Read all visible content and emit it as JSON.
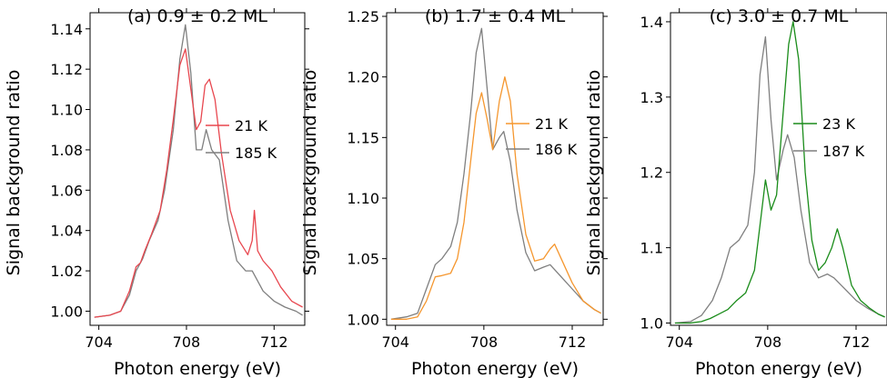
{
  "chart_data": [
    {
      "type": "line",
      "title": "(a) 0.9 ± 0.2 ML",
      "xlabel": "Photon energy (eV)",
      "ylabel": "Signal background ratio",
      "xlim": [
        703.6,
        713.4
      ],
      "ylim": [
        0.993,
        1.148
      ],
      "xticks": [
        704,
        708,
        712
      ],
      "yticks": [
        1.0,
        1.02,
        1.04,
        1.06,
        1.08,
        1.1,
        1.12,
        1.14
      ],
      "ytick_labels": [
        "1.00",
        "1.02",
        "1.04",
        "1.06",
        "1.08",
        "1.10",
        "1.12",
        "1.14"
      ],
      "legend_position": "center-right",
      "series": [
        {
          "name": "21 K",
          "color": "#e8474f",
          "x": [
            703.8,
            704.5,
            705.0,
            705.4,
            705.7,
            705.9,
            706.1,
            706.4,
            706.8,
            707.1,
            707.4,
            707.7,
            707.95,
            708.2,
            708.45,
            708.65,
            708.85,
            709.05,
            709.3,
            709.6,
            710.0,
            710.4,
            710.8,
            711.0,
            711.1,
            711.25,
            711.5,
            711.9,
            712.3,
            712.8,
            713.3
          ],
          "y": [
            0.997,
            0.998,
            1.0,
            1.01,
            1.022,
            1.024,
            1.03,
            1.038,
            1.05,
            1.07,
            1.095,
            1.122,
            1.13,
            1.11,
            1.09,
            1.094,
            1.112,
            1.115,
            1.105,
            1.078,
            1.05,
            1.035,
            1.028,
            1.035,
            1.05,
            1.03,
            1.025,
            1.02,
            1.012,
            1.005,
            1.002
          ]
        },
        {
          "name": "185 K",
          "color": "#7f7f7f",
          "x": [
            703.8,
            704.5,
            705.0,
            705.4,
            705.7,
            706.0,
            706.3,
            706.7,
            707.0,
            707.4,
            707.7,
            707.95,
            708.2,
            708.45,
            708.7,
            708.9,
            709.15,
            709.5,
            709.9,
            710.3,
            710.7,
            711.0,
            711.5,
            712.0,
            712.5,
            713.0,
            713.3
          ],
          "y": [
            0.997,
            0.998,
            1.0,
            1.008,
            1.02,
            1.026,
            1.035,
            1.045,
            1.06,
            1.09,
            1.125,
            1.142,
            1.118,
            1.08,
            1.08,
            1.09,
            1.08,
            1.075,
            1.045,
            1.025,
            1.02,
            1.02,
            1.01,
            1.005,
            1.002,
            1.0,
            0.998
          ]
        }
      ]
    },
    {
      "type": "line",
      "title": "(b) 1.7 ± 0.4 ML",
      "xlabel": "Photon energy (eV)",
      "ylabel": "Signal background ratio",
      "xlim": [
        703.6,
        713.4
      ],
      "ylim": [
        0.995,
        1.253
      ],
      "xticks": [
        704,
        708,
        712
      ],
      "yticks": [
        1.0,
        1.05,
        1.1,
        1.15,
        1.2,
        1.25
      ],
      "ytick_labels": [
        "1.00",
        "1.05",
        "1.10",
        "1.15",
        "1.20",
        "1.25"
      ],
      "legend_position": "center-right",
      "series": [
        {
          "name": "21 K",
          "color": "#f5972f",
          "x": [
            703.8,
            704.5,
            705.0,
            705.4,
            705.8,
            706.1,
            706.5,
            706.8,
            707.1,
            707.4,
            707.65,
            707.9,
            708.15,
            708.4,
            708.7,
            708.95,
            709.2,
            709.5,
            709.9,
            710.3,
            710.7,
            711.0,
            711.2,
            711.5,
            712.0,
            712.5,
            713.0,
            713.3
          ],
          "y": [
            1.0,
            1.0,
            1.002,
            1.015,
            1.035,
            1.036,
            1.038,
            1.05,
            1.08,
            1.13,
            1.17,
            1.187,
            1.165,
            1.14,
            1.18,
            1.2,
            1.18,
            1.12,
            1.07,
            1.048,
            1.05,
            1.058,
            1.062,
            1.05,
            1.03,
            1.015,
            1.008,
            1.005
          ]
        },
        {
          "name": "186 K",
          "color": "#7f7f7f",
          "x": [
            703.8,
            704.5,
            705.0,
            705.4,
            705.8,
            706.1,
            706.5,
            706.8,
            707.1,
            707.4,
            707.65,
            707.9,
            708.15,
            708.4,
            708.7,
            708.9,
            709.2,
            709.5,
            709.9,
            710.3,
            710.7,
            711.0,
            711.5,
            712.0,
            712.5,
            713.0,
            713.3
          ],
          "y": [
            1.0,
            1.002,
            1.005,
            1.025,
            1.045,
            1.05,
            1.06,
            1.08,
            1.12,
            1.17,
            1.22,
            1.24,
            1.19,
            1.14,
            1.15,
            1.155,
            1.13,
            1.09,
            1.055,
            1.04,
            1.043,
            1.045,
            1.035,
            1.025,
            1.015,
            1.008,
            1.005
          ]
        }
      ]
    },
    {
      "type": "line",
      "title": "(c) 3.0 ± 0.7 ML",
      "xlabel": "Photon energy (eV)",
      "ylabel": "Signal background ratio",
      "xlim": [
        703.6,
        713.4
      ],
      "ylim": [
        0.997,
        1.412
      ],
      "xticks": [
        704,
        708,
        712
      ],
      "yticks": [
        1.0,
        1.1,
        1.2,
        1.3,
        1.4
      ],
      "ytick_labels": [
        "1.0",
        "1.1",
        "1.2",
        "1.3",
        "1.4"
      ],
      "legend_position": "center-right",
      "series": [
        {
          "name": "23 K",
          "color": "#1a8c1a",
          "x": [
            703.8,
            704.5,
            705.0,
            705.4,
            705.8,
            706.2,
            706.6,
            707.0,
            707.4,
            707.65,
            707.9,
            708.15,
            708.4,
            708.7,
            708.95,
            709.15,
            709.4,
            709.7,
            710.0,
            710.3,
            710.6,
            710.9,
            711.15,
            711.4,
            711.8,
            712.2,
            712.6,
            713.0,
            713.3
          ],
          "y": [
            1.0,
            1.0,
            1.002,
            1.006,
            1.012,
            1.018,
            1.03,
            1.04,
            1.07,
            1.13,
            1.19,
            1.15,
            1.17,
            1.28,
            1.37,
            1.4,
            1.35,
            1.2,
            1.11,
            1.07,
            1.08,
            1.1,
            1.125,
            1.1,
            1.05,
            1.03,
            1.02,
            1.012,
            1.008
          ]
        },
        {
          "name": "187 K",
          "color": "#7f7f7f",
          "x": [
            703.8,
            704.5,
            705.0,
            705.5,
            705.9,
            706.3,
            706.7,
            707.1,
            707.4,
            707.65,
            707.9,
            708.15,
            708.4,
            708.7,
            708.9,
            709.2,
            709.5,
            709.9,
            710.3,
            710.7,
            711.0,
            711.5,
            712.0,
            712.5,
            713.0,
            713.3
          ],
          "y": [
            1.0,
            1.002,
            1.01,
            1.03,
            1.06,
            1.1,
            1.11,
            1.13,
            1.2,
            1.33,
            1.38,
            1.27,
            1.19,
            1.23,
            1.25,
            1.22,
            1.15,
            1.08,
            1.06,
            1.065,
            1.06,
            1.045,
            1.03,
            1.02,
            1.012,
            1.008
          ]
        }
      ]
    }
  ]
}
